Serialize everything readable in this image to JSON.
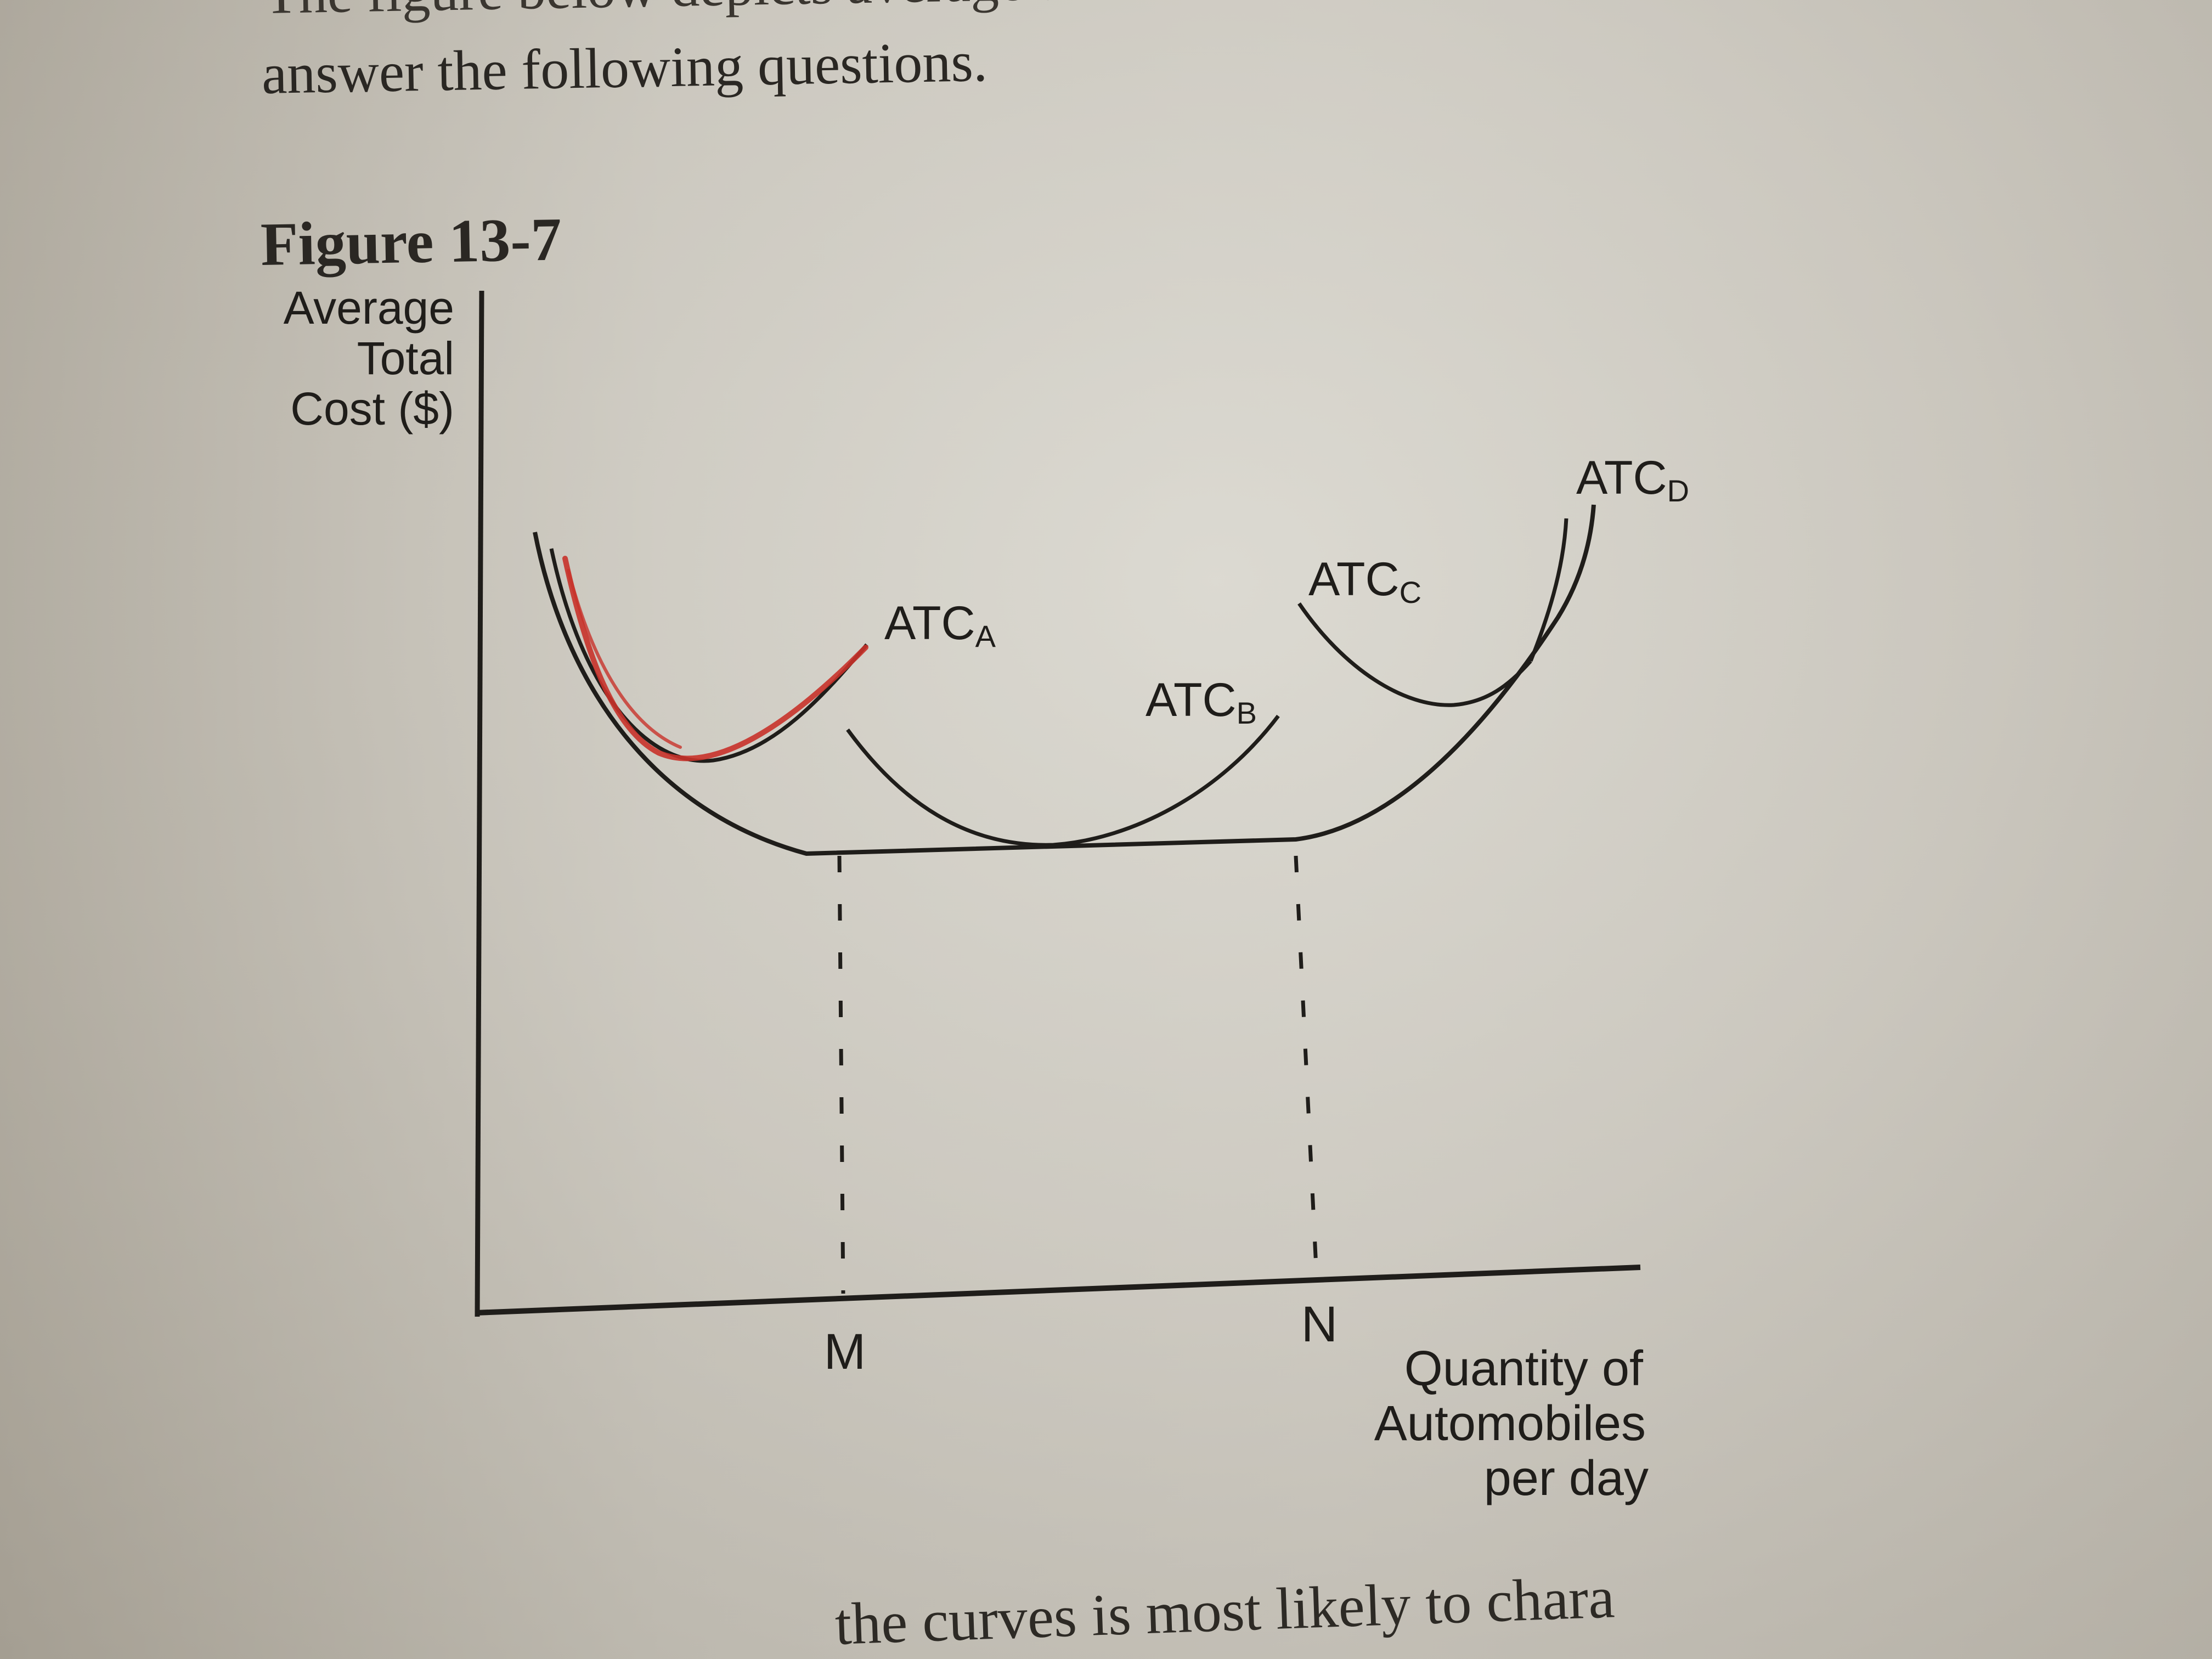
{
  "intro": {
    "top_fragment": "The figure below depicts average total cost",
    "line": "answer the following questions."
  },
  "figure": {
    "label": "Figure 13-7",
    "y_axis_label": [
      "Average",
      "Total",
      "Cost ($)"
    ],
    "x_axis_label": [
      "Quantity of",
      "Automobiles",
      "per day"
    ],
    "x_ticks": [
      "M",
      "N"
    ],
    "curves": [
      {
        "name": "ATC",
        "subscript": "A"
      },
      {
        "name": "ATC",
        "subscript": "B"
      },
      {
        "name": "ATC",
        "subscript": "C"
      },
      {
        "name": "ATC",
        "subscript": "D"
      }
    ],
    "colors": {
      "line": "#1f1d1a",
      "annotation": "#c8322a"
    }
  },
  "bottom_fragment": "the curves is most likely to chara"
}
